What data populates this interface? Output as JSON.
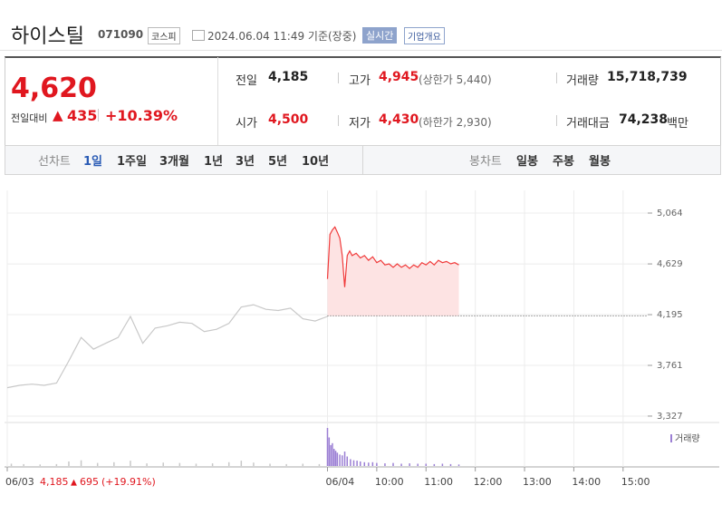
{
  "header": {
    "name": "하이스틸",
    "code": "071090",
    "market": "코스피",
    "timestamp": "2024.06.04 11:49 기준(장중)",
    "realtime": "실시간",
    "company_info": "기업개요"
  },
  "quote": {
    "price": "4,620",
    "change_label": "전일대비",
    "change": "435",
    "change_pct": "+10.39%"
  },
  "stats": [
    {
      "label": "전일",
      "value": "4,185"
    },
    {
      "label": "고가",
      "value": "4,945",
      "note": "(상한가 5,440)"
    },
    {
      "label": "거래량",
      "value": "15,718,739"
    },
    {
      "label": "시가",
      "value": "4,500"
    },
    {
      "label": "저가",
      "value": "4,430",
      "note": "(하한가 2,930)"
    },
    {
      "label": "거래대금",
      "value": "74,238",
      "unit": "백만"
    }
  ],
  "tabs": {
    "line_label": "선차트",
    "line_tabs": [
      "1일",
      "1주일",
      "3개월",
      "1년",
      "3년",
      "5년",
      "10년"
    ],
    "candle_label": "봉차트",
    "candle_tabs": [
      "일봉",
      "주봉",
      "월봉"
    ]
  },
  "chart_data": [
    {
      "type": "line",
      "xlim": [
        -390,
        390
      ],
      "xticks": [
        {
          "value": -390,
          "label": "06/03"
        },
        {
          "value": 0,
          "label": "06/04"
        },
        {
          "value": 60,
          "label": "10:00"
        },
        {
          "value": 120,
          "label": "11:00"
        },
        {
          "value": 180,
          "label": "12:00"
        },
        {
          "value": 240,
          "label": "13:00"
        },
        {
          "value": 300,
          "label": "14:00"
        },
        {
          "value": 360,
          "label": "15:00"
        }
      ],
      "ylim": [
        3280,
        5258
      ],
      "yticks": [
        {
          "value": 5064,
          "label": "5,064"
        },
        {
          "value": 4629,
          "label": "4,629"
        },
        {
          "value": 4195,
          "label": "4,195"
        },
        {
          "value": 3761,
          "label": "3,761"
        },
        {
          "value": 3327,
          "label": "3,327"
        }
      ],
      "baseline": 4185,
      "grid": true,
      "series": [
        {
          "color": "#c8c8c8",
          "x": [
            -390,
            -375,
            -360,
            -345,
            -330,
            -315,
            -300,
            -285,
            -270,
            -255,
            -240,
            -225,
            -210,
            -195,
            -180,
            -165,
            -150,
            -135,
            -120,
            -105,
            -90,
            -75,
            -60,
            -45,
            -30,
            -15,
            0
          ],
          "values": [
            3570,
            3590,
            3600,
            3590,
            3610,
            3800,
            4000,
            3900,
            3950,
            4000,
            4180,
            3950,
            4080,
            4100,
            4130,
            4120,
            4050,
            4070,
            4120,
            4260,
            4280,
            4240,
            4230,
            4250,
            4160,
            4140,
            4180
          ]
        },
        {
          "color": "#f03a3a",
          "fill": "#fde3e3",
          "x": [
            0,
            3,
            6,
            9,
            12,
            15,
            18,
            21,
            24,
            27,
            30,
            35,
            40,
            45,
            50,
            55,
            60,
            65,
            70,
            75,
            80,
            85,
            90,
            95,
            100,
            105,
            110,
            115,
            120,
            125,
            130,
            135,
            140,
            145,
            150,
            155,
            160
          ],
          "values": [
            4500,
            4880,
            4920,
            4945,
            4900,
            4850,
            4700,
            4430,
            4700,
            4740,
            4700,
            4720,
            4680,
            4700,
            4660,
            4690,
            4640,
            4660,
            4620,
            4630,
            4600,
            4630,
            4600,
            4620,
            4590,
            4620,
            4600,
            4640,
            4620,
            4650,
            4620,
            4660,
            4640,
            4650,
            4630,
            4640,
            4620
          ]
        }
      ]
    },
    {
      "type": "bar",
      "legend_label": "거래량",
      "xlim": [
        -390,
        390
      ],
      "ylim": [
        0,
        100
      ],
      "series": [
        {
          "color": "#c8c8c8",
          "x": [
            -385,
            -370,
            -350,
            -330,
            -315,
            -300,
            -280,
            -260,
            -240,
            -220,
            -200,
            -180,
            -160,
            -140,
            -120,
            -105,
            -90,
            -70,
            -50,
            -30,
            -10
          ],
          "values": [
            6,
            5,
            4,
            5,
            12,
            15,
            8,
            10,
            14,
            7,
            9,
            8,
            6,
            7,
            10,
            14,
            9,
            6,
            5,
            6,
            5
          ]
        },
        {
          "color": "#9b7fd4",
          "x": [
            0,
            2,
            4,
            6,
            8,
            10,
            12,
            15,
            18,
            21,
            24,
            28,
            32,
            36,
            40,
            45,
            50,
            55,
            60,
            70,
            80,
            90,
            100,
            110,
            120,
            130,
            140,
            150,
            160
          ],
          "values": [
            100,
            75,
            55,
            60,
            45,
            40,
            35,
            30,
            28,
            38,
            25,
            18,
            15,
            14,
            12,
            10,
            9,
            10,
            8,
            7,
            8,
            6,
            7,
            6,
            6,
            5,
            6,
            5,
            4
          ]
        }
      ]
    }
  ],
  "footer": {
    "prev_close": "4,185",
    "prev_change": "695",
    "prev_pct": "(+19.91%)"
  }
}
